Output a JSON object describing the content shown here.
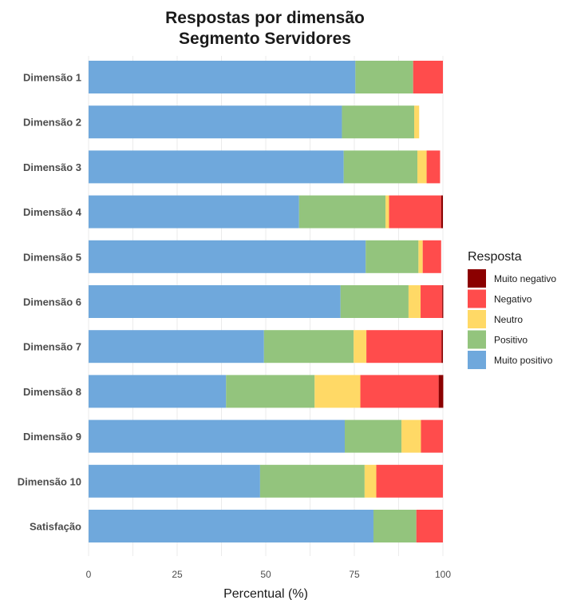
{
  "chart_data": {
    "type": "bar",
    "orientation": "horizontal",
    "stacked": true,
    "title": "Respostas por dimensão",
    "subtitle": "Segmento Servidores",
    "xlabel": "Percentual (%)",
    "ylabel": "",
    "xlim": [
      0,
      100
    ],
    "xticks": [
      "0",
      "25",
      "50",
      "75",
      "100"
    ],
    "grid": true,
    "legend_title": "Resposta",
    "legend_position": "right",
    "categories": [
      "Dimensão 1",
      "Dimensão 2",
      "Dimensão 3",
      "Dimensão 4",
      "Dimensão 5",
      "Dimensão 6",
      "Dimensão 7",
      "Dimensão 8",
      "Dimensão 9",
      "Dimensão 10",
      "Satisfação"
    ],
    "series": [
      {
        "name": "Muito positivo",
        "color": "#6fa8dc",
        "values": [
          75.3,
          71.5,
          72.0,
          59.4,
          78.2,
          71.1,
          49.5,
          38.8,
          72.3,
          48.4,
          80.4
        ]
      },
      {
        "name": "Positivo",
        "color": "#93c47d",
        "values": [
          16.3,
          20.4,
          20.8,
          24.4,
          14.9,
          19.2,
          25.3,
          25.0,
          16.0,
          29.5,
          12.1
        ]
      },
      {
        "name": "Neutro",
        "color": "#ffd966",
        "values": [
          0,
          1.4,
          2.6,
          1.0,
          1.2,
          3.4,
          3.6,
          12.9,
          5.5,
          3.3,
          0
        ]
      },
      {
        "name": "Negativo",
        "color": "#ff4c4c",
        "values": [
          8.4,
          0,
          3.8,
          14.7,
          5.2,
          6.1,
          21.2,
          22.1,
          6.2,
          18.8,
          7.5
        ]
      },
      {
        "name": "Muito negativo",
        "color": "#8b0000",
        "values": [
          0,
          0,
          0,
          0.5,
          0,
          0.3,
          0.4,
          1.3,
          0,
          0,
          0
        ]
      }
    ],
    "legend_order": [
      "Muito negativo",
      "Negativo",
      "Neutro",
      "Positivo",
      "Muito positivo"
    ]
  }
}
